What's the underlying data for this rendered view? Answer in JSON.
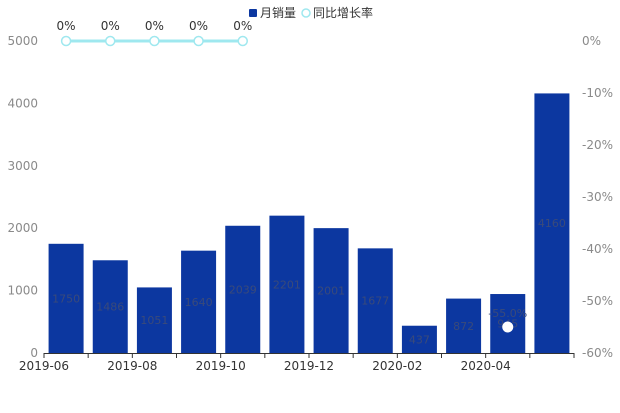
{
  "chart_data": {
    "type": "bar",
    "categories": [
      "2019-06",
      "2019-07",
      "2019-08",
      "2019-09",
      "2019-10",
      "2019-11",
      "2019-12",
      "2020-01",
      "2020-02",
      "2020-03",
      "2020-04",
      "2020-05"
    ],
    "x_tick_labels": [
      "2019-06",
      "2019-08",
      "2019-10",
      "2019-12",
      "2020-02",
      "2020-04"
    ],
    "y_left_ticks": [
      "0",
      "1000",
      "2000",
      "3000",
      "4000",
      "5000"
    ],
    "y_right_ticks": [
      "0%",
      "-10%",
      "-20%",
      "-30%",
      "-40%",
      "-50%",
      "-60%"
    ],
    "ylim_left": [
      0,
      5000
    ],
    "ylim_right": [
      -60,
      0
    ],
    "legend": {
      "placement": "top-center",
      "bar_series": "月销量",
      "line_series": "同比增长率"
    },
    "series": [
      {
        "name": "月销量",
        "kind": "bar",
        "color": "#0c37a0",
        "values": [
          1750,
          1486,
          1051,
          1640,
          2039,
          2201,
          2001,
          1677,
          437,
          872,
          945,
          4160
        ],
        "labels": [
          "1750",
          "1486",
          "1051",
          "1640",
          "2039",
          "2201",
          "2001",
          "1677",
          "437",
          "872",
          "945",
          "4160"
        ]
      },
      {
        "name": "同比增长率",
        "kind": "line",
        "color": "#9fe8ef",
        "values": [
          0,
          0,
          0,
          0,
          0,
          null,
          null,
          null,
          null,
          null,
          -55,
          null
        ],
        "labels": [
          "0%",
          "0%",
          "0%",
          "0%",
          "0%",
          "",
          "",
          "",
          "",
          "",
          "-55.0%",
          ""
        ]
      }
    ]
  }
}
